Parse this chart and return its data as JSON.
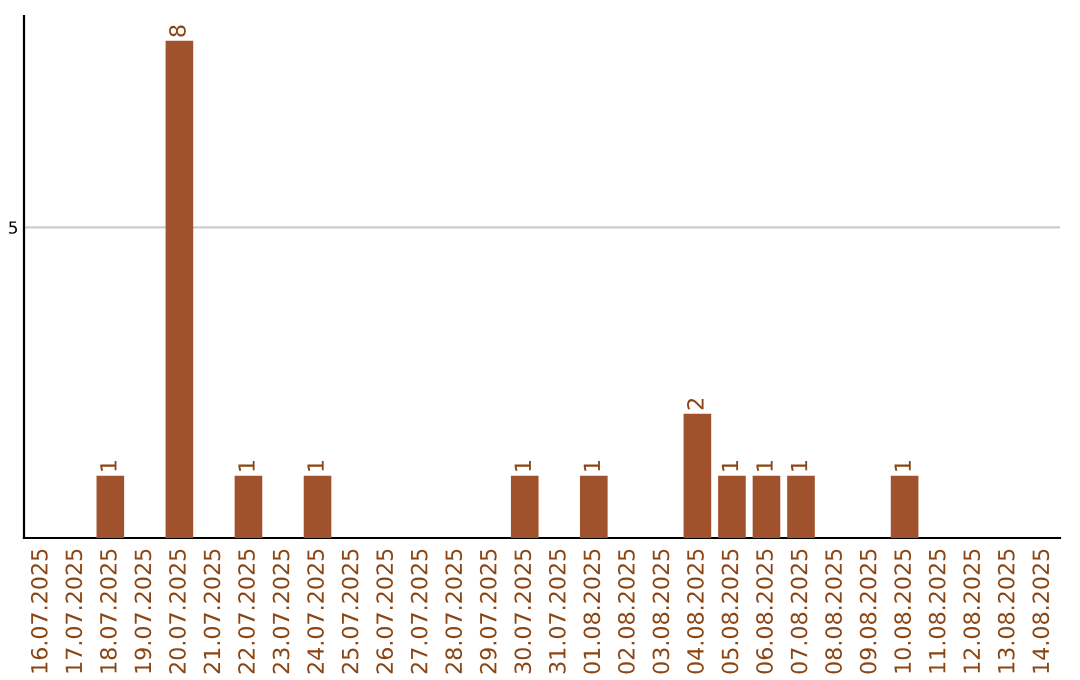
{
  "chart_data": {
    "type": "bar",
    "categories": [
      "16.07.2025",
      "17.07.2025",
      "18.07.2025",
      "19.07.2025",
      "20.07.2025",
      "21.07.2025",
      "22.07.2025",
      "23.07.2025",
      "24.07.2025",
      "25.07.2025",
      "26.07.2025",
      "27.07.2025",
      "28.07.2025",
      "29.07.2025",
      "30.07.2025",
      "31.07.2025",
      "01.08.2025",
      "02.08.2025",
      "03.08.2025",
      "04.08.2025",
      "05.08.2025",
      "06.08.2025",
      "07.08.2025",
      "08.08.2025",
      "09.08.2025",
      "10.08.2025",
      "11.08.2025",
      "12.08.2025",
      "13.08.2025",
      "14.08.2025"
    ],
    "values": [
      0,
      0,
      1,
      0,
      8,
      0,
      1,
      0,
      1,
      0,
      0,
      0,
      0,
      0,
      1,
      0,
      1,
      0,
      0,
      2,
      1,
      1,
      1,
      0,
      0,
      1,
      0,
      0,
      0,
      0
    ],
    "value_labels": [
      null,
      null,
      "1",
      null,
      "8",
      null,
      "1",
      null,
      "1",
      null,
      null,
      null,
      null,
      null,
      "1",
      null,
      "1",
      null,
      null,
      "2",
      "1",
      "1",
      "1",
      null,
      null,
      "1",
      null,
      null,
      null,
      null
    ],
    "color": "#a0522d",
    "ylim": [
      0,
      8.4
    ],
    "yticks": [
      5
    ],
    "grid": "y"
  }
}
